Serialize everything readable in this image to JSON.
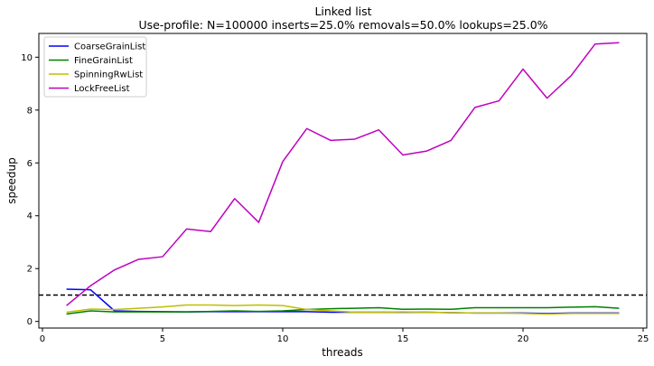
{
  "chart_data": {
    "type": "line",
    "title": "Linked list",
    "subtitle": "Use-profile: N=100000 inserts=25.0% removals=50.0% lookups=25.0%",
    "xlabel": "threads",
    "ylabel": "speedup",
    "xlim": [
      -0.15,
      25.15
    ],
    "ylim": [
      -0.25,
      10.9
    ],
    "xticks": [
      0,
      5,
      10,
      15,
      20,
      25
    ],
    "yticks": [
      0,
      2,
      4,
      6,
      8,
      10
    ],
    "grid": false,
    "legend_position": "top-left",
    "reference_line": {
      "y": 1.0,
      "style": "dashed",
      "color": "#000000"
    },
    "x": [
      1,
      2,
      3,
      4,
      5,
      6,
      7,
      8,
      9,
      10,
      11,
      12,
      13,
      14,
      15,
      16,
      17,
      18,
      19,
      20,
      21,
      22,
      23,
      24
    ],
    "series": [
      {
        "name": "CoarseGrainList",
        "color": "#0000ff",
        "values": [
          1.22,
          1.2,
          0.4,
          0.38,
          0.37,
          0.36,
          0.37,
          0.37,
          0.37,
          0.37,
          0.37,
          0.35,
          0.35,
          0.35,
          0.35,
          0.35,
          0.33,
          0.32,
          0.32,
          0.32,
          0.3,
          0.32,
          0.32,
          0.32
        ]
      },
      {
        "name": "FineGrainList",
        "color": "#008000",
        "values": [
          0.28,
          0.4,
          0.36,
          0.36,
          0.36,
          0.36,
          0.38,
          0.4,
          0.38,
          0.4,
          0.45,
          0.48,
          0.5,
          0.52,
          0.46,
          0.47,
          0.46,
          0.52,
          0.52,
          0.52,
          0.52,
          0.54,
          0.56,
          0.5
        ]
      },
      {
        "name": "SpinningRwList",
        "color": "#bfbf00",
        "values": [
          0.35,
          0.47,
          0.45,
          0.5,
          0.55,
          0.62,
          0.62,
          0.6,
          0.62,
          0.6,
          0.45,
          0.4,
          0.35,
          0.35,
          0.36,
          0.35,
          0.33,
          0.32,
          0.32,
          0.3,
          0.28,
          0.3,
          0.3,
          0.3
        ]
      },
      {
        "name": "LockFreeList",
        "color": "#bf00bf",
        "values": [
          0.6,
          1.35,
          1.95,
          2.35,
          2.45,
          3.5,
          3.4,
          4.65,
          3.75,
          6.05,
          7.3,
          6.85,
          6.9,
          7.25,
          6.3,
          6.45,
          6.85,
          8.1,
          8.35,
          9.55,
          8.45,
          9.3,
          10.5,
          10.55
        ]
      }
    ]
  }
}
